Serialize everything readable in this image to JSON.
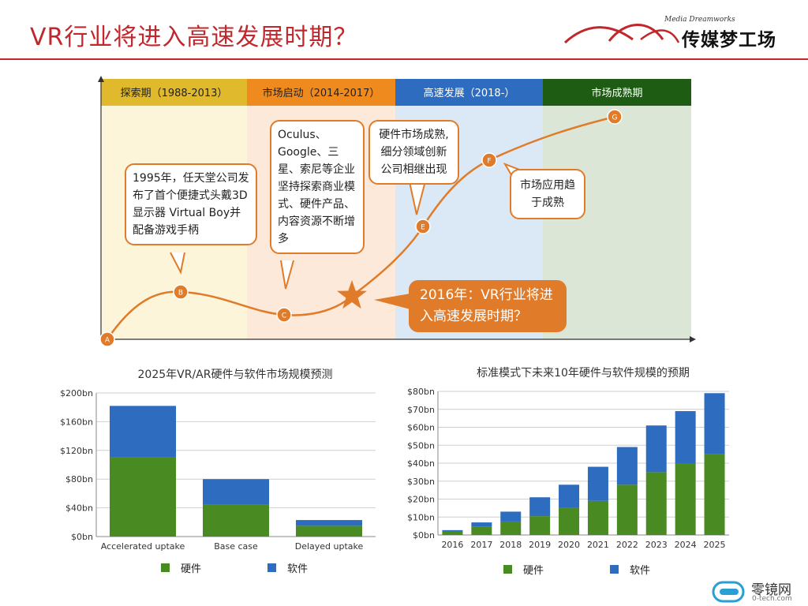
{
  "page_title": "VR行业将进入高速发展时期？",
  "logo": {
    "subtitle": "Media Dreamworks",
    "name": "传媒梦工场"
  },
  "footer_logo": {
    "name": "零镜网",
    "url_text": "0-tech.com"
  },
  "colors": {
    "accent": "#c0282d",
    "orange": "#e07b2a",
    "hardware": "#4a8a22",
    "software": "#2e6cc0"
  },
  "timeline": {
    "phases": [
      {
        "label": "探索期（1988-2013）",
        "header_color": "#e0ba2c",
        "bg_color": "#fdf5d9"
      },
      {
        "label": "市场启动（2014-2017）",
        "header_color": "#ef8a1e",
        "bg_color": "#fde9da"
      },
      {
        "label": "高速发展（2018-）",
        "header_color": "#2e6cc0",
        "bg_color": "#dbe8f5"
      },
      {
        "label": "市场成熟期",
        "header_color": "#1e5c14",
        "bg_color": "#dbe6d6"
      }
    ],
    "points": [
      "A",
      "B",
      "C",
      "E",
      "F",
      "G"
    ],
    "bubbles": {
      "b1": "1995年，任天堂公司发布了首个便捷式头戴3D显示器 Virtual Boy并配备游戏手柄",
      "b2": "Oculus、Google、三星、索尼等企业坚持探索商业模式、硬件产品、内容资源不断增多",
      "b3": "硬件市场成熟,细分领域创新公司相继出现",
      "b4": "市场应用趋于成熟",
      "b5": "2016年：VR行业将进入高速发展时期？"
    }
  },
  "chart_data": [
    {
      "type": "bar",
      "stacked": true,
      "title": "2025年VR/AR硬件与软件市场规模预测",
      "categories": [
        "Accelerated uptake",
        "Base case",
        "Delayed uptake"
      ],
      "series": [
        {
          "name": "硬件",
          "values": [
            110,
            45,
            15
          ]
        },
        {
          "name": "软件",
          "values": [
            72,
            35,
            8
          ]
        }
      ],
      "ylim": [
        0,
        200
      ],
      "yticks": [
        "$0bn",
        "$40bn",
        "$80bn",
        "$120bn",
        "$160bn",
        "$200bn"
      ],
      "grid": true,
      "legend": "bottom"
    },
    {
      "type": "bar",
      "stacked": true,
      "title": "标准模式下未来10年硬件与软件规模的预期",
      "categories": [
        "2016",
        "2017",
        "2018",
        "2019",
        "2020",
        "2021",
        "2022",
        "2023",
        "2024",
        "2025"
      ],
      "series": [
        {
          "name": "硬件",
          "values": [
            2.2,
            4.5,
            7.5,
            10.5,
            15,
            19,
            28,
            35,
            40,
            45
          ]
        },
        {
          "name": "软件",
          "values": [
            0.5,
            2.5,
            5.5,
            10.5,
            13,
            19,
            21,
            26,
            29,
            34
          ]
        }
      ],
      "ylim": [
        0,
        80
      ],
      "yticks": [
        "$0bn",
        "$10bn",
        "$20bn",
        "$30bn",
        "$40bn",
        "$50bn",
        "$60bn",
        "$70bn",
        "$80bn"
      ],
      "grid": true,
      "legend": "bottom"
    }
  ]
}
